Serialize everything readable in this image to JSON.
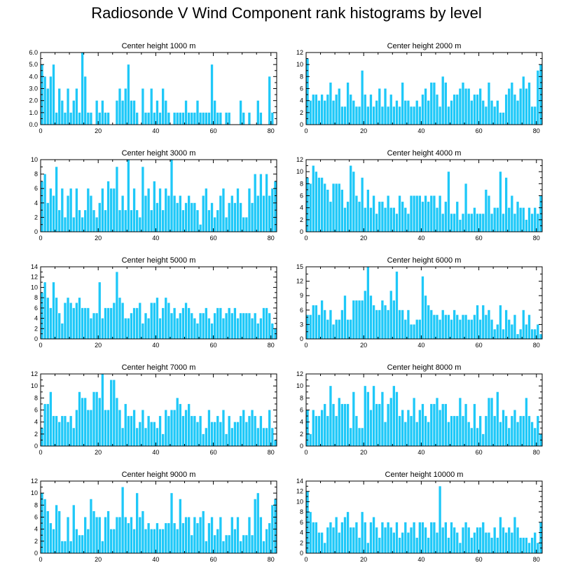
{
  "title": "Radiosonde V Wind Component rank histograms by level",
  "colors": {
    "bar": "#1ec8f8",
    "axis": "#000000"
  },
  "chart_data": [
    {
      "type": "bar",
      "title": "Center height 1000 m",
      "xlim": [
        0,
        82
      ],
      "ylim": [
        0,
        6
      ],
      "xticks": [
        0,
        20,
        40,
        60,
        80
      ],
      "xtick_labels": [
        "0",
        "20",
        "40",
        "60",
        "80"
      ],
      "yticks": [
        0,
        1,
        2,
        3,
        4,
        5,
        6
      ],
      "ytick_labels": [
        "0.0",
        "1.0",
        "2.0",
        "3.0",
        "4.0",
        "5.0",
        "6.0"
      ],
      "values": [
        5,
        4,
        3,
        4,
        5,
        1,
        3,
        2,
        1,
        3,
        1,
        2,
        3,
        1,
        6,
        4,
        1,
        1,
        0,
        2,
        1,
        2,
        1,
        1,
        0,
        0,
        2,
        3,
        2,
        3,
        5,
        2,
        2,
        1,
        0,
        3,
        1,
        1,
        3,
        1,
        2,
        1,
        3,
        2,
        1,
        0,
        1,
        1,
        1,
        1,
        2,
        1,
        1,
        1,
        2,
        1,
        1,
        1,
        1,
        5,
        2,
        1,
        1,
        0,
        1,
        1,
        0,
        0,
        0,
        2,
        1,
        0,
        1,
        0,
        0,
        2,
        1,
        0,
        0,
        4,
        1,
        0
      ]
    },
    {
      "type": "bar",
      "title": "Center height 2000 m",
      "xlim": [
        0,
        82
      ],
      "ylim": [
        0,
        12
      ],
      "xticks": [
        0,
        20,
        40,
        60,
        80
      ],
      "xtick_labels": [
        "0",
        "20",
        "40",
        "60",
        "80"
      ],
      "yticks": [
        0,
        2,
        4,
        6,
        8,
        10,
        12
      ],
      "ytick_labels": [
        "0",
        "2",
        "4",
        "6",
        "8",
        "10",
        "12"
      ],
      "values": [
        11,
        4,
        5,
        5,
        4,
        5,
        4,
        5,
        7,
        4,
        5,
        6,
        3,
        3,
        7,
        5,
        4,
        3,
        3,
        9,
        5,
        3,
        5,
        3,
        4,
        6,
        3,
        6,
        3,
        5,
        3,
        4,
        3,
        7,
        4,
        4,
        3,
        3,
        4,
        3,
        5,
        6,
        4,
        7,
        7,
        5,
        3,
        8,
        7,
        3,
        4,
        5,
        5,
        6,
        7,
        6,
        6,
        4,
        5,
        5,
        6,
        4,
        3,
        7,
        4,
        3,
        4,
        2,
        2,
        5,
        6,
        7,
        5,
        4,
        6,
        8,
        6,
        7,
        3,
        3,
        9,
        10
      ]
    },
    {
      "type": "bar",
      "title": "Center height 3000 m",
      "xlim": [
        0,
        82
      ],
      "ylim": [
        0,
        10
      ],
      "xticks": [
        0,
        20,
        40,
        60,
        80
      ],
      "xtick_labels": [
        "0",
        "20",
        "40",
        "60",
        "80"
      ],
      "yticks": [
        0,
        2,
        4,
        6,
        8,
        10
      ],
      "ytick_labels": [
        "0",
        "2",
        "4",
        "6",
        "8",
        "10"
      ],
      "values": [
        7,
        8,
        4,
        6,
        5,
        9,
        3,
        6,
        2,
        5,
        6,
        2,
        6,
        3,
        2,
        3,
        6,
        5,
        3,
        2,
        4,
        6,
        3,
        7,
        6,
        6,
        9,
        3,
        5,
        3,
        10,
        3,
        6,
        3,
        2,
        9,
        5,
        6,
        3,
        7,
        4,
        6,
        3,
        6,
        5,
        10,
        5,
        4,
        5,
        3,
        4,
        5,
        4,
        4,
        3,
        1,
        5,
        6,
        3,
        4,
        2,
        3,
        5,
        6,
        2,
        4,
        5,
        4,
        6,
        4,
        2,
        2,
        6,
        4,
        8,
        5,
        8,
        5,
        8,
        5,
        6,
        7
      ]
    },
    {
      "type": "bar",
      "title": "Center height 4000 m",
      "xlim": [
        0,
        82
      ],
      "ylim": [
        0,
        12
      ],
      "xticks": [
        0,
        20,
        40,
        60,
        80
      ],
      "xtick_labels": [
        "0",
        "20",
        "40",
        "60",
        "80"
      ],
      "yticks": [
        0,
        2,
        4,
        6,
        8,
        10,
        12
      ],
      "ytick_labels": [
        "0",
        "2",
        "4",
        "6",
        "8",
        "10",
        "12"
      ],
      "values": [
        9,
        8,
        11,
        10,
        9,
        9,
        8,
        7,
        5,
        8,
        8,
        8,
        7,
        4,
        5,
        11,
        10,
        6,
        5,
        9,
        4,
        7,
        4,
        6,
        3,
        5,
        5,
        4,
        6,
        4,
        4,
        3,
        6,
        5,
        4,
        3,
        6,
        6,
        6,
        6,
        5,
        6,
        5,
        6,
        6,
        4,
        6,
        3,
        5,
        10,
        3,
        3,
        5,
        2,
        3,
        8,
        3,
        3,
        4,
        3,
        3,
        3,
        7,
        6,
        3,
        4,
        4,
        10,
        3,
        9,
        4,
        6,
        3,
        5,
        4,
        4,
        2,
        4,
        3,
        4,
        3,
        6
      ]
    },
    {
      "type": "bar",
      "title": "Center height 5000 m",
      "xlim": [
        0,
        82
      ],
      "ylim": [
        0,
        14
      ],
      "xticks": [
        0,
        20,
        40,
        60,
        80
      ],
      "xtick_labels": [
        "0",
        "20",
        "40",
        "60",
        "80"
      ],
      "yticks": [
        0,
        2,
        4,
        6,
        8,
        10,
        12,
        14
      ],
      "ytick_labels": [
        "0",
        "2",
        "4",
        "6",
        "8",
        "10",
        "12",
        "14"
      ],
      "values": [
        9,
        11,
        8,
        6,
        11,
        8,
        5,
        3,
        7,
        8,
        7,
        6,
        7,
        8,
        6,
        6,
        6,
        4,
        5,
        5,
        11,
        4,
        6,
        6,
        6,
        7,
        13,
        8,
        7,
        4,
        4,
        5,
        6,
        6,
        7,
        3,
        5,
        4,
        7,
        7,
        8,
        4,
        6,
        8,
        7,
        5,
        6,
        4,
        5,
        6,
        7,
        6,
        5,
        4,
        3,
        5,
        5,
        6,
        4,
        3,
        5,
        6,
        6,
        4,
        5,
        6,
        5,
        6,
        4,
        5,
        5,
        5,
        5,
        4,
        5,
        3,
        4,
        6,
        6,
        5,
        3,
        2
      ]
    },
    {
      "type": "bar",
      "title": "Center height 6000 m",
      "xlim": [
        0,
        82
      ],
      "ylim": [
        0,
        15
      ],
      "xticks": [
        0,
        20,
        40,
        60,
        80
      ],
      "xtick_labels": [
        "0",
        "20",
        "40",
        "60",
        "80"
      ],
      "yticks": [
        0,
        3,
        6,
        9,
        12,
        15
      ],
      "ytick_labels": [
        "0",
        "3",
        "6",
        "9",
        "12",
        "15"
      ],
      "values": [
        5,
        5,
        7,
        7,
        5,
        8,
        6,
        4,
        6,
        3,
        4,
        4,
        6,
        9,
        4,
        4,
        8,
        8,
        8,
        8,
        10,
        15,
        9,
        7,
        6,
        6,
        8,
        7,
        6,
        10,
        8,
        14,
        6,
        6,
        4,
        6,
        3,
        3,
        4,
        4,
        13,
        9,
        7,
        6,
        5,
        5,
        4,
        6,
        5,
        5,
        4,
        6,
        5,
        4,
        5,
        5,
        4,
        4,
        5,
        7,
        4,
        7,
        5,
        6,
        4,
        2,
        3,
        7,
        2,
        6,
        4,
        3,
        5,
        1,
        2,
        6,
        3,
        5,
        2,
        2,
        3,
        1
      ]
    },
    {
      "type": "bar",
      "title": "Center height 7000 m",
      "xlim": [
        0,
        82
      ],
      "ylim": [
        0,
        12
      ],
      "xticks": [
        0,
        20,
        40,
        60,
        80
      ],
      "xtick_labels": [
        "0",
        "20",
        "40",
        "60",
        "80"
      ],
      "yticks": [
        0,
        2,
        4,
        6,
        8,
        10,
        12
      ],
      "ytick_labels": [
        "0",
        "2",
        "4",
        "6",
        "8",
        "10",
        "12"
      ],
      "values": [
        3,
        7,
        7,
        9,
        5,
        5,
        4,
        5,
        5,
        4,
        5,
        3,
        6,
        9,
        8,
        8,
        6,
        6,
        9,
        9,
        8,
        12,
        6,
        6,
        11,
        11,
        8,
        6,
        3,
        7,
        5,
        5,
        6,
        3,
        4,
        6,
        3,
        5,
        4,
        4,
        3,
        5,
        2,
        6,
        5,
        6,
        6,
        8,
        7,
        5,
        6,
        7,
        5,
        5,
        4,
        5,
        2,
        3,
        6,
        4,
        4,
        5,
        4,
        6,
        2,
        5,
        3,
        4,
        4,
        5,
        6,
        4,
        5,
        6,
        5,
        3,
        5,
        3,
        3,
        6,
        3,
        1
      ]
    },
    {
      "type": "bar",
      "title": "Center height 8000 m",
      "xlim": [
        0,
        82
      ],
      "ylim": [
        0,
        12
      ],
      "xticks": [
        0,
        20,
        40,
        60,
        80
      ],
      "xtick_labels": [
        "0",
        "20",
        "40",
        "60",
        "80"
      ],
      "yticks": [
        0,
        2,
        4,
        6,
        8,
        10,
        12
      ],
      "ytick_labels": [
        "0",
        "2",
        "4",
        "6",
        "8",
        "10",
        "12"
      ],
      "values": [
        6,
        2,
        6,
        5,
        5,
        6,
        7,
        5,
        10,
        7,
        5,
        8,
        7,
        7,
        7,
        3,
        9,
        5,
        3,
        3,
        10,
        9,
        6,
        10,
        7,
        7,
        9,
        4,
        7,
        8,
        10,
        9,
        5,
        6,
        4,
        6,
        5,
        8,
        4,
        6,
        7,
        5,
        4,
        7,
        7,
        8,
        6,
        7,
        7,
        4,
        5,
        5,
        5,
        8,
        5,
        7,
        4,
        3,
        7,
        3,
        5,
        2,
        5,
        8,
        8,
        5,
        9,
        4,
        6,
        5,
        3,
        5,
        6,
        4,
        5,
        5,
        8,
        5,
        4,
        3,
        5,
        2
      ]
    },
    {
      "type": "bar",
      "title": "Center height 9000 m",
      "xlim": [
        0,
        82
      ],
      "ylim": [
        0,
        12
      ],
      "xticks": [
        0,
        20,
        40,
        60,
        80
      ],
      "xtick_labels": [
        "0",
        "20",
        "40",
        "60",
        "80"
      ],
      "yticks": [
        0,
        2,
        4,
        6,
        8,
        10,
        12
      ],
      "ytick_labels": [
        "0",
        "2",
        "4",
        "6",
        "8",
        "10",
        "12"
      ],
      "values": [
        10,
        9,
        7,
        5,
        4,
        8,
        7,
        2,
        2,
        6,
        2,
        8,
        4,
        3,
        3,
        6,
        4,
        9,
        7,
        6,
        6,
        2,
        6,
        7,
        4,
        4,
        6,
        6,
        11,
        6,
        5,
        6,
        4,
        10,
        6,
        7,
        4,
        5,
        4,
        4,
        5,
        4,
        4,
        5,
        5,
        10,
        5,
        4,
        9,
        5,
        6,
        6,
        3,
        6,
        5,
        6,
        7,
        2,
        5,
        6,
        3,
        4,
        6,
        2,
        3,
        3,
        6,
        4,
        6,
        2,
        3,
        3,
        6,
        3,
        9,
        10,
        6,
        2,
        4,
        5,
        8,
        9
      ]
    },
    {
      "type": "bar",
      "title": "Center height 10000 m",
      "xlim": [
        0,
        82
      ],
      "ylim": [
        0,
        14
      ],
      "xticks": [
        0,
        20,
        40,
        60,
        80
      ],
      "xtick_labels": [
        "0",
        "20",
        "40",
        "60",
        "80"
      ],
      "yticks": [
        0,
        2,
        4,
        6,
        8,
        10,
        12,
        14
      ],
      "ytick_labels": [
        "0",
        "2",
        "4",
        "6",
        "8",
        "10",
        "12",
        "14"
      ],
      "values": [
        12,
        8,
        6,
        6,
        4,
        4,
        2,
        5,
        6,
        5,
        7,
        4,
        6,
        7,
        8,
        5,
        5,
        6,
        3,
        8,
        6,
        2,
        6,
        7,
        5,
        3,
        6,
        5,
        6,
        5,
        4,
        6,
        3,
        4,
        6,
        4,
        5,
        6,
        3,
        6,
        6,
        5,
        3,
        6,
        6,
        4,
        13,
        5,
        6,
        3,
        6,
        5,
        4,
        2,
        5,
        6,
        5,
        3,
        4,
        5,
        5,
        6,
        4,
        4,
        3,
        5,
        3,
        7,
        5,
        4,
        5,
        4,
        7,
        5,
        3,
        3,
        3,
        2,
        3,
        4,
        2,
        6
      ]
    }
  ]
}
